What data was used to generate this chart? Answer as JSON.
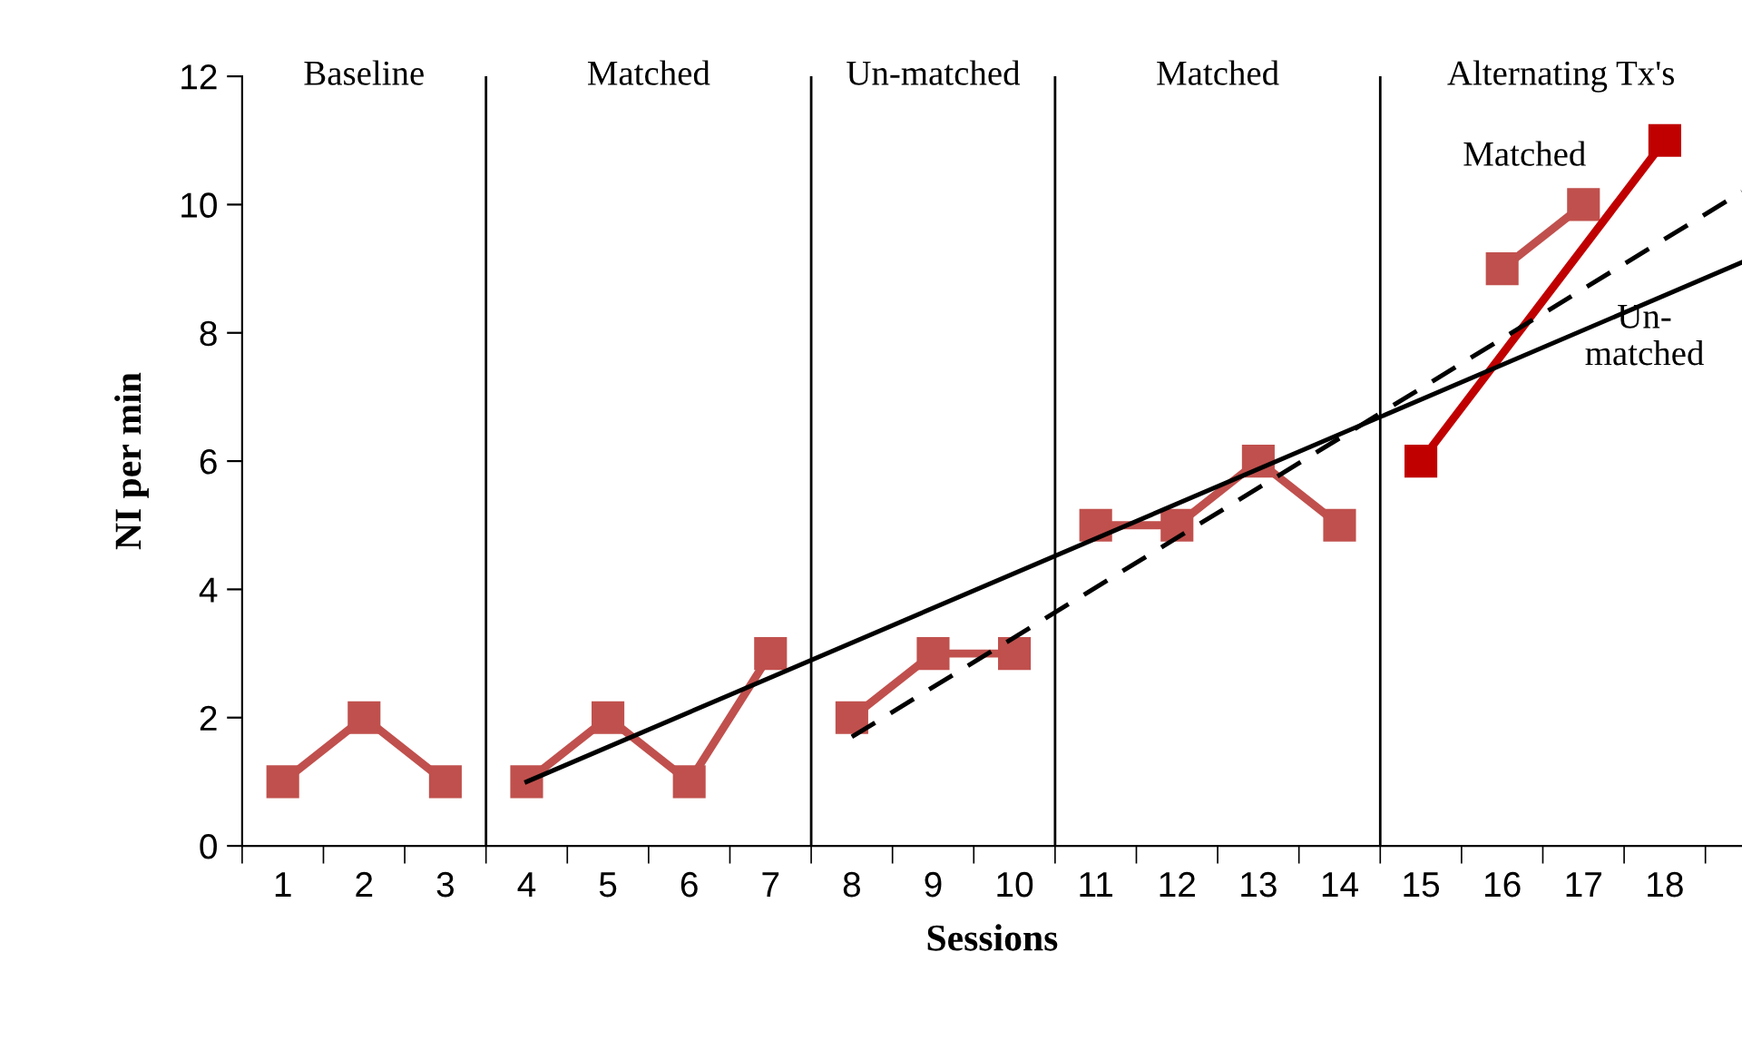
{
  "chart_data": {
    "type": "line",
    "xlabel": "Sessions",
    "ylabel": "NI per min",
    "xlim": [
      0.5,
      18.95
    ],
    "xticks": [
      1,
      2,
      3,
      4,
      5,
      6,
      7,
      8,
      9,
      10,
      11,
      12,
      13,
      14,
      15,
      16,
      17,
      18
    ],
    "ylim": [
      0,
      12
    ],
    "yticks": [
      0,
      2,
      4,
      6,
      8,
      10,
      12
    ],
    "marker": "square",
    "line_style": "solid",
    "grid": false,
    "legend": false,
    "series": [
      {
        "color": "#c0504d",
        "x": [
          1,
          2,
          3
        ],
        "values": [
          1,
          2,
          1
        ]
      },
      {
        "color": "#c0504d",
        "x": [
          4,
          5,
          6,
          7
        ],
        "values": [
          1,
          2,
          1,
          3
        ]
      },
      {
        "color": "#c0504d",
        "x": [
          8,
          9,
          10
        ],
        "values": [
          2,
          3,
          3
        ]
      },
      {
        "color": "#c0504d",
        "x": [
          11,
          12,
          13,
          14
        ],
        "values": [
          5,
          5,
          6,
          5
        ]
      },
      {
        "color": "#c0504d",
        "x": [
          16,
          17
        ],
        "values": [
          9,
          10
        ]
      },
      {
        "color": "#c00000",
        "x": [
          15,
          18
        ],
        "values": [
          6,
          11
        ]
      },
      {
        "color": "#000000",
        "marker": "none",
        "x": [
          4,
          18.95
        ],
        "values": [
          1.0,
          9.1
        ]
      },
      {
        "color": "#000000",
        "marker": "none",
        "line_style": "dashed",
        "x": [
          8,
          18.95
        ],
        "values": [
          1.7,
          10.2
        ]
      }
    ],
    "ref_lines": [
      {
        "axis": "x",
        "value": 3.5,
        "color": "#000000"
      },
      {
        "axis": "x",
        "value": 7.5,
        "color": "#000000"
      },
      {
        "axis": "x",
        "value": 10.5,
        "color": "#000000"
      },
      {
        "axis": "x",
        "value": 14.5,
        "color": "#000000"
      }
    ],
    "annotations": [
      "Baseline",
      "Matched",
      "Un-matched",
      "Matched",
      "Alternating Tx's",
      "Matched",
      "Un-\nmatched"
    ]
  }
}
